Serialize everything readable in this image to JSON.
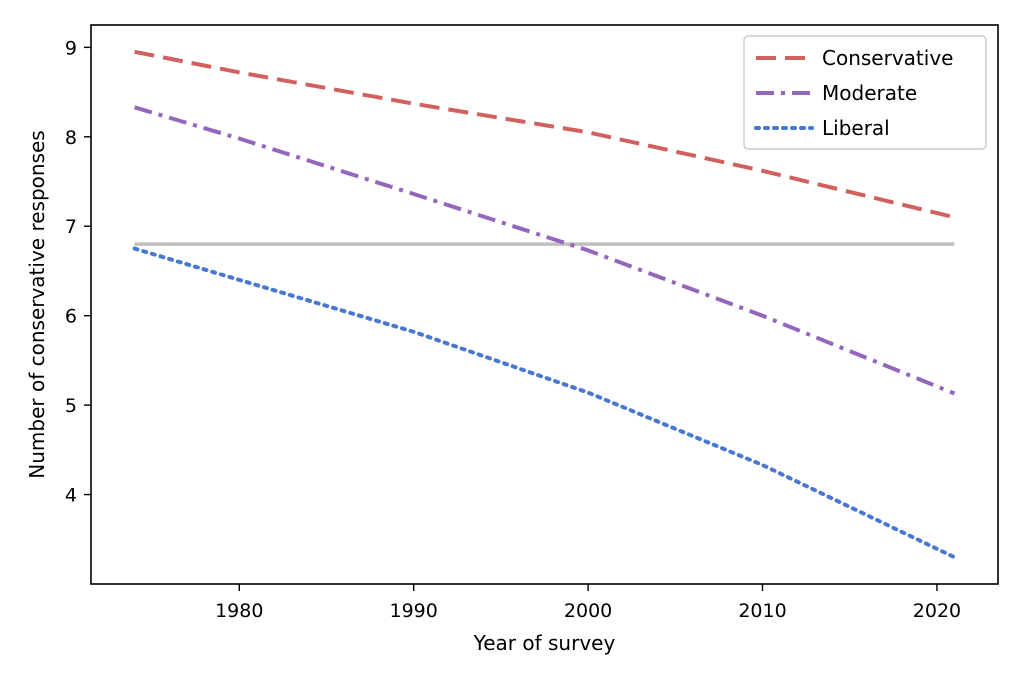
{
  "chart_data": {
    "type": "line",
    "title": "",
    "xlabel": "Year of survey",
    "ylabel": "Number of conservative responses",
    "xlim": [
      1971.5,
      2023.5
    ],
    "ylim": [
      3.0,
      9.25
    ],
    "xticks": [
      1980,
      1990,
      2000,
      2010,
      2020
    ],
    "yticks": [
      4,
      5,
      6,
      7,
      8,
      9
    ],
    "legend_position": "top-right",
    "grid": false,
    "reference_line": {
      "y": 6.8,
      "color": "#bfbfbf"
    },
    "series": [
      {
        "name": "Conservative",
        "color": "#d1605e",
        "dash": "dashed",
        "points": [
          [
            1974,
            8.95
          ],
          [
            1980,
            8.72
          ],
          [
            1990,
            8.37
          ],
          [
            2000,
            8.05
          ],
          [
            2010,
            7.62
          ],
          [
            2021,
            7.1
          ]
        ]
      },
      {
        "name": "Moderate",
        "color": "#9467bd",
        "dash": "dashdot",
        "points": [
          [
            1974,
            8.33
          ],
          [
            1980,
            7.98
          ],
          [
            1990,
            7.36
          ],
          [
            2000,
            6.73
          ],
          [
            2010,
            6.0
          ],
          [
            2021,
            5.13
          ]
        ]
      },
      {
        "name": "Liberal",
        "color": "#4878cf",
        "dash": "dotted",
        "points": [
          [
            1974,
            6.75
          ],
          [
            1980,
            6.4
          ],
          [
            1990,
            5.82
          ],
          [
            2000,
            5.14
          ],
          [
            2010,
            4.33
          ],
          [
            2021,
            3.3
          ]
        ]
      }
    ]
  }
}
